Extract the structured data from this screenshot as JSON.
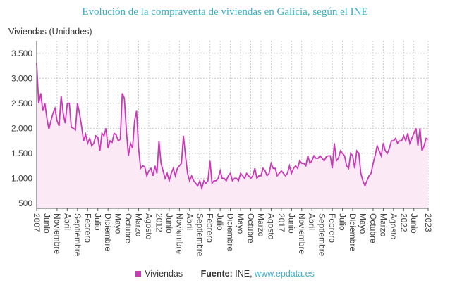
{
  "chart_data": {
    "type": "area",
    "title": "Evolución de la compraventa de viviendas en Galicia, según el INE",
    "ylabel": "Viviendas (Unidades)",
    "ylim": [
      400,
      3750
    ],
    "yticks": [
      500,
      1000,
      1500,
      2000,
      2500,
      3000,
      3500
    ],
    "ytick_labels": [
      "500",
      "1.000",
      "1.500",
      "2.000",
      "2.500",
      "3.000",
      "3.500"
    ],
    "grid": true,
    "legend_position": "bottom",
    "x_start": "2007-01",
    "x_ticks": [
      {
        "m": 0,
        "label": "2007"
      },
      {
        "m": 5,
        "label": "Junio"
      },
      {
        "m": 10,
        "label": "Noviembre"
      },
      {
        "m": 15,
        "label": "Abril"
      },
      {
        "m": 20,
        "label": "Septiembre"
      },
      {
        "m": 25,
        "label": "Febrero"
      },
      {
        "m": 30,
        "label": "Julio"
      },
      {
        "m": 35,
        "label": "Diciembre"
      },
      {
        "m": 40,
        "label": "Mayo"
      },
      {
        "m": 45,
        "label": "Octubre"
      },
      {
        "m": 50,
        "label": "Marzo"
      },
      {
        "m": 55,
        "label": "Agosto"
      },
      {
        "m": 60,
        "label": "2012"
      },
      {
        "m": 65,
        "label": "Junio"
      },
      {
        "m": 70,
        "label": "Noviembre"
      },
      {
        "m": 75,
        "label": "Abril"
      },
      {
        "m": 80,
        "label": "Septiembre"
      },
      {
        "m": 85,
        "label": "Febrero"
      },
      {
        "m": 90,
        "label": "Julio"
      },
      {
        "m": 95,
        "label": "Diciembre"
      },
      {
        "m": 100,
        "label": "Mayo"
      },
      {
        "m": 105,
        "label": "Octubre"
      },
      {
        "m": 110,
        "label": "Marzo"
      },
      {
        "m": 115,
        "label": "Agosto"
      },
      {
        "m": 120,
        "label": "2017"
      },
      {
        "m": 125,
        "label": "Junio"
      },
      {
        "m": 130,
        "label": "Noviembre"
      },
      {
        "m": 135,
        "label": "Abril"
      },
      {
        "m": 140,
        "label": "Septiembre"
      },
      {
        "m": 145,
        "label": "Febrero"
      },
      {
        "m": 150,
        "label": "Julio"
      },
      {
        "m": 155,
        "label": "Diciembre"
      },
      {
        "m": 160,
        "label": "Mayo"
      },
      {
        "m": 165,
        "label": "Octubre"
      },
      {
        "m": 170,
        "label": "Marzo"
      },
      {
        "m": 175,
        "label": "Agosto"
      },
      {
        "m": 180,
        "label": "2022"
      },
      {
        "m": 185,
        "label": "Junio"
      },
      {
        "m": 192,
        "label": "2023"
      }
    ],
    "series": [
      {
        "name": "Viviendas",
        "color": "#c93bb5",
        "fill": "#fbeaf6",
        "values": [
          3300,
          2500,
          2700,
          2350,
          2500,
          2200,
          1980,
          2150,
          2300,
          2400,
          2150,
          2050,
          2650,
          2300,
          2100,
          2500,
          2500,
          2020,
          2000,
          1970,
          2500,
          2300,
          2050,
          1750,
          1880,
          1700,
          1800,
          1650,
          1700,
          1850,
          1820,
          1550,
          1900,
          1850,
          2000,
          1600,
          1750,
          1720,
          1900,
          1870,
          1750,
          1780,
          2700,
          2600,
          1950,
          1450,
          1700,
          1600,
          2150,
          2350,
          1600,
          1200,
          1250,
          1230,
          1050,
          1150,
          1200,
          1050,
          1250,
          1100,
          1750,
          1300,
          1150,
          1000,
          1100,
          950,
          1100,
          1200,
          1050,
          1200,
          1250,
          1300,
          1850,
          1450,
          1100,
          950,
          1050,
          950,
          900,
          850,
          950,
          800,
          950,
          900,
          950,
          1350,
          900,
          950,
          950,
          1000,
          1150,
          1000,
          1000,
          950,
          1050,
          1100,
          950,
          1000,
          1000,
          950,
          1100,
          1050,
          1000,
          1100,
          1050,
          1000,
          1050,
          1200,
          1000,
          1050,
          1050,
          1200,
          1150,
          1050,
          1100,
          1300,
          1200,
          1200,
          1050,
          1100,
          1150,
          1100,
          1050,
          1100,
          1250,
          1100,
          1200,
          1250,
          1200,
          1350,
          1300,
          1300,
          1250,
          1450,
          1300,
          1350,
          1450,
          1400,
          1400,
          1450,
          1400,
          1350,
          1430,
          1450,
          1450,
          1200,
          1700,
          1350,
          1400,
          1550,
          1500,
          1450,
          1250,
          1200,
          1500,
          1450,
          1200,
          1550,
          1500,
          1100,
          950,
          850,
          950,
          1050,
          1100,
          1300,
          1450,
          1650,
          1550,
          1450,
          1700,
          1550,
          1500,
          1600,
          1750,
          1750,
          1800,
          1700,
          1750,
          1750,
          1850,
          1750,
          1900,
          1700,
          1800,
          1900,
          2000,
          1650,
          2000,
          1550,
          1650,
          1800,
          1780
        ]
      }
    ]
  },
  "legend": {
    "series_label": "Viviendas",
    "source_label": "Fuente:",
    "source_text": "INE,",
    "source_url": "www.epdata.es"
  }
}
